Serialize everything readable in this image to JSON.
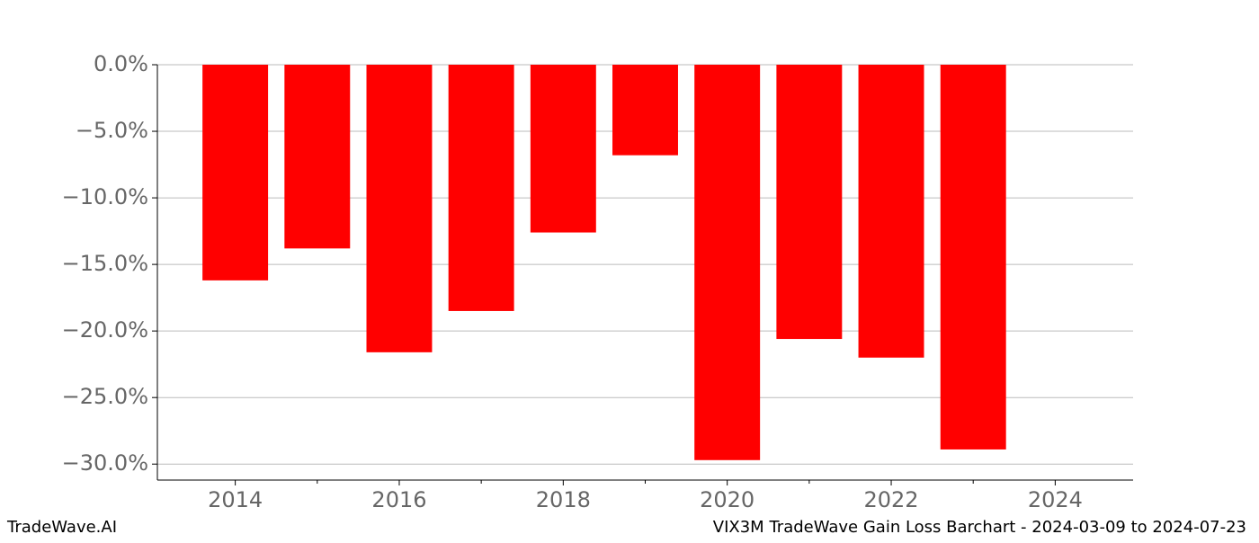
{
  "chart_data": {
    "type": "bar",
    "title": "VIX3M TradeWave Gain Loss Barchart - 2024-03-09 to 2024-07-23",
    "watermark": "TradeWave.AI",
    "x": [
      2014,
      2015,
      2016,
      2017,
      2018,
      2019,
      2020,
      2021,
      2022,
      2023
    ],
    "values": [
      -16.2,
      -13.8,
      -21.6,
      -18.5,
      -12.6,
      -6.8,
      -29.7,
      -20.6,
      -22.0,
      -28.9
    ],
    "color": "#ff0000",
    "xlim": [
      2013.05,
      2024.95
    ],
    "xticks": [
      2014,
      2016,
      2018,
      2020,
      2022,
      2024
    ],
    "xminorticks": [
      2015,
      2017,
      2019,
      2021,
      2023
    ],
    "ylim": [
      -31.2,
      0
    ],
    "yticks": [
      {
        "value": 0,
        "label": "0.0%"
      },
      {
        "value": -5,
        "label": "−5.0%"
      },
      {
        "value": -10,
        "label": "−10.0%"
      },
      {
        "value": -15,
        "label": "−15.0%"
      },
      {
        "value": -20,
        "label": "−20.0%"
      },
      {
        "value": -25,
        "label": "−25.0%"
      },
      {
        "value": -30,
        "label": "−30.0%"
      }
    ],
    "grid": true
  }
}
